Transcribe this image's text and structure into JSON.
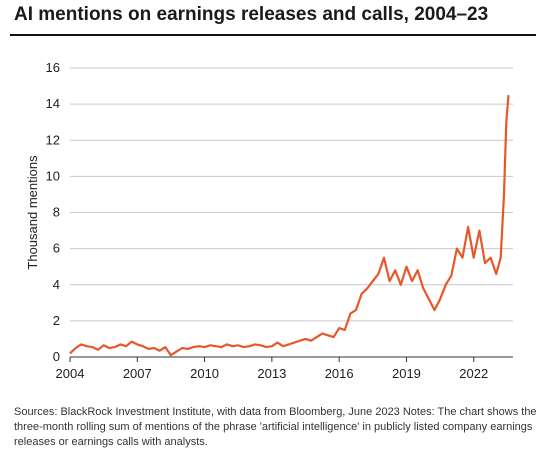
{
  "header": {
    "title": "AI mentions on earnings releases and calls, 2004–23"
  },
  "footer": {
    "source": "Sources: BlackRock Investment Institute, with data from Bloomberg, June 2023 Notes: The chart shows the three-month rolling sum of mentions of the phrase 'artificial intelligence' in publicly listed company earnings releases or earnings calls with analysts."
  },
  "colors": {
    "line": "#e8572a",
    "grid": "#c9c9c9",
    "axis": "#333333"
  },
  "chart_data": {
    "type": "line",
    "title": "AI mentions on earnings releases and calls, 2004–23",
    "xlabel": "",
    "ylabel": "Thousand mentions",
    "xlim": [
      2004,
      2023.75
    ],
    "ylim": [
      0,
      16
    ],
    "x_ticks": [
      2004,
      2007,
      2010,
      2013,
      2016,
      2019,
      2022
    ],
    "y_ticks": [
      0,
      2,
      4,
      6,
      8,
      10,
      12,
      14,
      16
    ],
    "grid": "horizontal",
    "series": [
      {
        "x": [
          2004.0,
          2004.25,
          2004.5,
          2004.75,
          2005.0,
          2005.25,
          2005.5,
          2005.75,
          2006.0,
          2006.25,
          2006.5,
          2006.75,
          2007.0,
          2007.25,
          2007.5,
          2007.75,
          2008.0,
          2008.25,
          2008.5,
          2008.75,
          2009.0,
          2009.25,
          2009.5,
          2009.75,
          2010.0,
          2010.25,
          2010.5,
          2010.75,
          2011.0,
          2011.25,
          2011.5,
          2011.75,
          2012.0,
          2012.25,
          2012.5,
          2012.75,
          2013.0,
          2013.25,
          2013.5,
          2013.75,
          2014.0,
          2014.25,
          2014.5,
          2014.75,
          2015.0,
          2015.25,
          2015.5,
          2015.75,
          2016.0,
          2016.25,
          2016.5,
          2016.75,
          2017.0,
          2017.25,
          2017.5,
          2017.75,
          2018.0,
          2018.25,
          2018.5,
          2018.75,
          2019.0,
          2019.25,
          2019.5,
          2019.75,
          2020.0,
          2020.25,
          2020.5,
          2020.75,
          2021.0,
          2021.25,
          2021.5,
          2021.75,
          2022.0,
          2022.25,
          2022.5,
          2022.75,
          2023.0,
          2023.2,
          2023.35,
          2023.45,
          2023.55
        ],
        "y": [
          0.2,
          0.5,
          0.7,
          0.6,
          0.55,
          0.4,
          0.65,
          0.5,
          0.55,
          0.7,
          0.6,
          0.85,
          0.7,
          0.6,
          0.45,
          0.5,
          0.35,
          0.55,
          0.1,
          0.3,
          0.5,
          0.45,
          0.55,
          0.6,
          0.55,
          0.65,
          0.6,
          0.55,
          0.7,
          0.6,
          0.65,
          0.55,
          0.6,
          0.7,
          0.65,
          0.55,
          0.6,
          0.8,
          0.6,
          0.7,
          0.8,
          0.9,
          1.0,
          0.9,
          1.1,
          1.3,
          1.2,
          1.1,
          1.6,
          1.5,
          2.4,
          2.6,
          3.5,
          3.8,
          4.2,
          4.6,
          5.5,
          4.2,
          4.8,
          4.0,
          5.0,
          4.2,
          4.8,
          3.8,
          3.2,
          2.6,
          3.2,
          4.0,
          4.5,
          6.0,
          5.5,
          7.2,
          5.5,
          7.0,
          5.2,
          5.5,
          4.6,
          5.5,
          9.0,
          13.0,
          14.5
        ]
      }
    ]
  }
}
